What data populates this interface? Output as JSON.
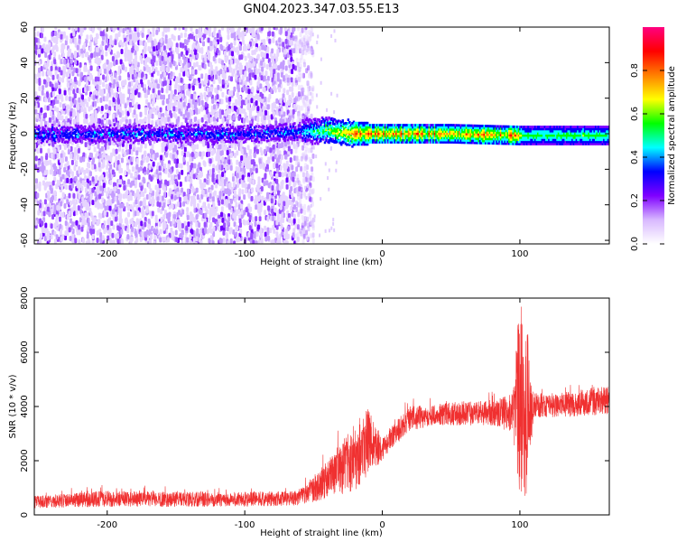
{
  "title": "GN04.2023.347.03.55.E13",
  "chart_data": [
    {
      "type": "heatmap",
      "xlabel": "Height of straight line (km)",
      "ylabel": "Frequency (Hz)",
      "xlim": [
        -253,
        165
      ],
      "ylim": [
        -62,
        60
      ],
      "x_ticks": [
        -200,
        -100,
        0,
        100
      ],
      "y_ticks": [
        60,
        40,
        20,
        0,
        -20,
        -40,
        -60
      ],
      "colorbar": {
        "label": "Normalized spectral amplitude",
        "range": [
          0,
          1
        ],
        "ticks": [
          0.0,
          0.2,
          0.4,
          0.6,
          0.8
        ],
        "colors": [
          "#ffffff",
          "#d8b8ff",
          "#7f00ff",
          "#0000ff",
          "#00ffff",
          "#00ff00",
          "#ffff00",
          "#ff8000",
          "#ff0000",
          "#ff0080"
        ]
      },
      "signal_band": {
        "noise_region_x": [
          -253,
          -58
        ],
        "band_center_hz": [
          {
            "x": -200,
            "f": 0
          },
          {
            "x": -100,
            "f": 0
          },
          {
            "x": -40,
            "f": 2
          },
          {
            "x": -20,
            "f": 0
          },
          {
            "x": 0,
            "f": 0
          },
          {
            "x": 50,
            "f": 0
          },
          {
            "x": 100,
            "f": -1
          },
          {
            "x": 165,
            "f": -1
          }
        ],
        "peak_amplitude_x": [
          -20,
          100
        ]
      }
    },
    {
      "type": "line",
      "xlabel": "Height of straight line (km)",
      "ylabel": "SNR (10 * v/v)",
      "xlim": [
        -253,
        165
      ],
      "ylim": [
        0,
        8000
      ],
      "x_ticks": [
        -200,
        -100,
        0,
        100
      ],
      "y_ticks": [
        0,
        2000,
        4000,
        6000,
        8000
      ],
      "line_color": "#f03030",
      "series": [
        {
          "x": [
            -253,
            -200,
            -150,
            -100,
            -60,
            -40,
            -20,
            -10,
            0,
            10,
            20,
            40,
            60,
            80,
            95,
            100,
            105,
            110,
            130,
            165
          ],
          "y_low": [
            250,
            300,
            300,
            300,
            350,
            600,
            900,
            1500,
            2000,
            2600,
            3100,
            3300,
            3300,
            3300,
            3000,
            400,
            600,
            3600,
            3600,
            3700
          ],
          "y_high": [
            700,
            900,
            850,
            850,
            900,
            2000,
            3500,
            4000,
            2800,
            3500,
            4000,
            4100,
            4200,
            4200,
            4500,
            8000,
            6800,
            4500,
            4500,
            4800
          ]
        }
      ]
    }
  ]
}
